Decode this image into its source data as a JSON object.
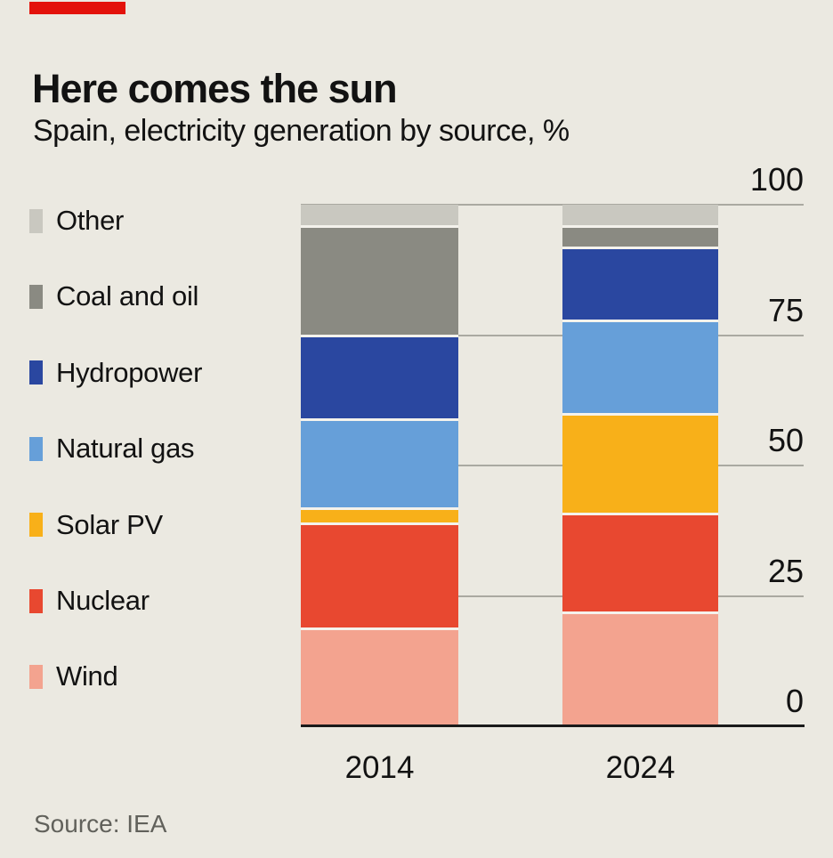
{
  "chart_data": {
    "type": "bar",
    "variant": "stacked",
    "title": "Here comes the sun",
    "subtitle": "Spain, electricity generation by source, %",
    "source": "Source: IEA",
    "categories": [
      "2014",
      "2024"
    ],
    "series": [
      {
        "name": "Other",
        "color": "#c9c8c0",
        "values": [
          4,
          4
        ]
      },
      {
        "name": "Coal and oil",
        "color": "#8a8a82",
        "values": [
          21,
          4
        ]
      },
      {
        "name": "Hydropower",
        "color": "#2a47a0",
        "values": [
          16,
          14
        ]
      },
      {
        "name": "Natural gas",
        "color": "#669fd9",
        "values": [
          17,
          18
        ]
      },
      {
        "name": "Solar PV",
        "color": "#f8b019",
        "values": [
          3,
          19
        ]
      },
      {
        "name": "Nuclear",
        "color": "#e84830",
        "values": [
          20,
          19
        ]
      },
      {
        "name": "Wind",
        "color": "#f3a38f",
        "values": [
          19,
          22
        ]
      }
    ],
    "stack_note": "segments stacked top-to-bottom in series order (Other on top, Wind at bottom)",
    "ylim": [
      0,
      100
    ],
    "yticks": [
      100,
      75,
      50,
      25,
      0
    ],
    "grid": true,
    "legend_position": "left"
  },
  "colors": {
    "background": "#ebe9e1",
    "accent_red": "#e3120b",
    "gridline": "#aaa9a1",
    "axis": "#1a1a1a",
    "text": "#121212",
    "source_text": "#61615b",
    "segment_separator": "#f4f2ec"
  }
}
